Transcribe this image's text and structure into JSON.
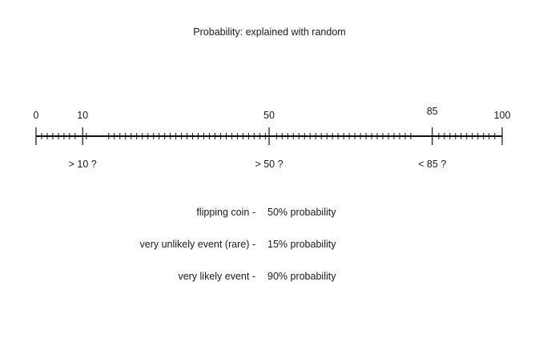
{
  "title": "Probability: explained with random",
  "number_line": {
    "min": 0,
    "max": 100,
    "minor_step": 1.2,
    "major_labels": [
      {
        "value": 0,
        "label": "0"
      },
      {
        "value": 10,
        "label": "10"
      },
      {
        "value": 50,
        "label": "50"
      },
      {
        "value": 85,
        "label": "85"
      },
      {
        "value": 100,
        "label": "100"
      }
    ],
    "conditions": [
      {
        "value": 10,
        "label": "> 10 ?"
      },
      {
        "value": 50,
        "label": "> 50 ?"
      },
      {
        "value": 85,
        "label": "< 85 ?"
      }
    ]
  },
  "examples": [
    {
      "event": "flipping coin -",
      "probability": "50% probability"
    },
    {
      "event": "very unlikely event (rare) -",
      "probability": "15% probability"
    },
    {
      "event": "very likely event -",
      "probability": "90% probability"
    }
  ]
}
